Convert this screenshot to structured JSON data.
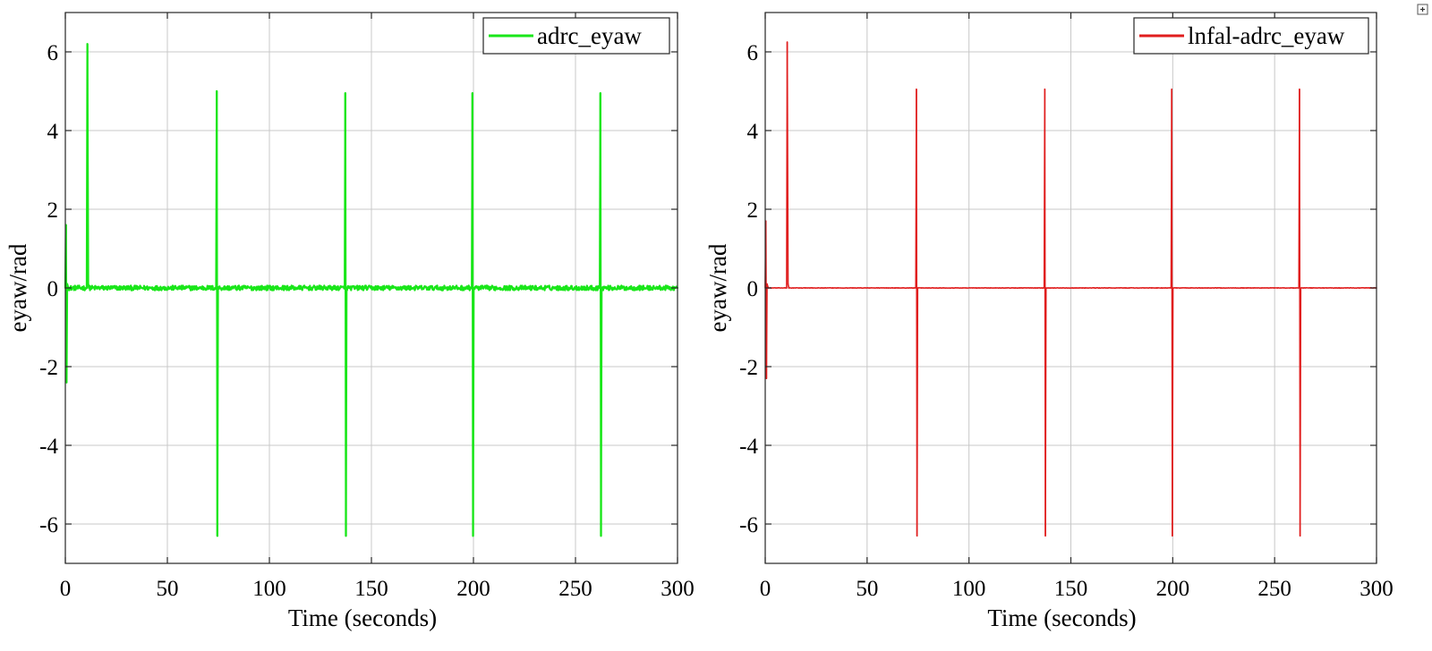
{
  "chart_data": [
    {
      "type": "line",
      "xlabel": "Time (seconds)",
      "ylabel": "eyaw/rad",
      "xlim": [
        0,
        300
      ],
      "ylim": [
        -7,
        7
      ],
      "xticks": [
        0,
        50,
        100,
        150,
        200,
        250,
        300
      ],
      "yticks": [
        -6,
        -4,
        -2,
        0,
        2,
        4,
        6
      ],
      "grid": true,
      "legend": "top-right",
      "noise_amplitude": 0.06,
      "series": [
        {
          "name": "adrc_eyaw",
          "color": "#19e619",
          "x": [
            0,
            0.3,
            0.6,
            0.9,
            1.5,
            10.5,
            10.8,
            11.2,
            11.6,
            73.9,
            74.2,
            74.5,
            74.8,
            136.9,
            137.2,
            137.5,
            137.8,
            199.2,
            199.5,
            199.8,
            200.1,
            261.9,
            262.2,
            262.5,
            262.8,
            300
          ],
          "y": [
            0,
            1.6,
            -2.4,
            0.1,
            0,
            0,
            6.2,
            0.1,
            0,
            0,
            5.0,
            -6.3,
            0,
            0,
            4.95,
            -6.3,
            0,
            0,
            4.95,
            -6.3,
            0,
            0,
            4.95,
            -6.3,
            0,
            0
          ]
        }
      ]
    },
    {
      "type": "line",
      "xlabel": "Time (seconds)",
      "ylabel": "eyaw/rad",
      "xlim": [
        0,
        300
      ],
      "ylim": [
        -7,
        7
      ],
      "xticks": [
        0,
        50,
        100,
        150,
        200,
        250,
        300
      ],
      "yticks": [
        -6,
        -4,
        -2,
        0,
        2,
        4,
        6
      ],
      "grid": true,
      "legend": "top-right",
      "noise_amplitude": 0.005,
      "series": [
        {
          "name": "lnfal-adrc_eyaw",
          "color": "#e01e1e",
          "x": [
            0,
            0.3,
            0.6,
            0.9,
            1.5,
            10.5,
            10.8,
            11.2,
            11.6,
            73.9,
            74.2,
            74.5,
            74.8,
            136.9,
            137.2,
            137.5,
            137.8,
            199.2,
            199.5,
            199.8,
            200.1,
            261.9,
            262.2,
            262.5,
            262.8,
            300
          ],
          "y": [
            0,
            1.7,
            -2.3,
            0.1,
            0,
            0,
            6.25,
            0.1,
            0,
            0,
            5.05,
            -6.3,
            0,
            0,
            5.05,
            -6.3,
            0,
            0,
            5.05,
            -6.3,
            0,
            0,
            5.05,
            -6.3,
            0,
            0
          ]
        }
      ]
    }
  ],
  "icons": {
    "corner": "expand-icon"
  }
}
